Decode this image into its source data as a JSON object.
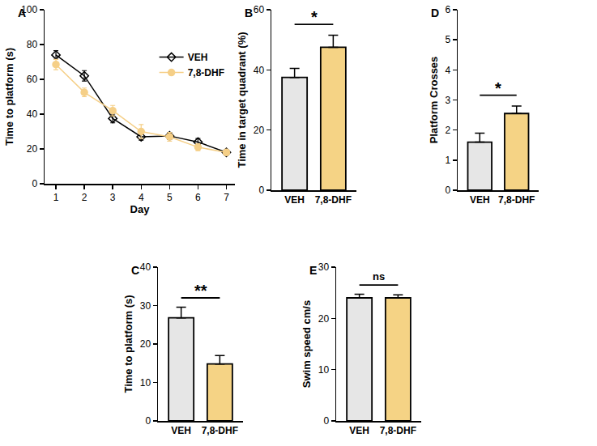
{
  "chart_data": [
    {
      "type": "line",
      "title": "A",
      "x": [
        1,
        2,
        3,
        4,
        5,
        6,
        7
      ],
      "xlabel": "Day",
      "ylabel": "Time to platform (s)",
      "xlim": [
        0.6,
        7.3
      ],
      "xticks": [
        1,
        2,
        3,
        4,
        5,
        6,
        7
      ],
      "ylim": [
        0,
        100
      ],
      "yticks": [
        0,
        20,
        40,
        60,
        80,
        100
      ],
      "legend": "upper right",
      "grid": false,
      "series": [
        {
          "name": "VEH",
          "color": "#000000",
          "marker": "diamond-open",
          "values": [
            74,
            62,
            37.5,
            27,
            27.5,
            24,
            18
          ],
          "errors": [
            2.5,
            3,
            2.5,
            2,
            2,
            2,
            1.5
          ]
        },
        {
          "name": "7,8-DHF",
          "color": "#f5cf87",
          "marker": "circle",
          "values": [
            68.5,
            52.5,
            42,
            30,
            27,
            21,
            18
          ],
          "errors": [
            3,
            2.5,
            3,
            4,
            2.5,
            2,
            1.5
          ]
        }
      ]
    },
    {
      "type": "bar",
      "title": "B",
      "categories": [
        "VEH",
        "7,8-DHF"
      ],
      "values": [
        37.5,
        47.5
      ],
      "errors": [
        3,
        4
      ],
      "colors": [
        "#e6e6e6",
        "#f5d385"
      ],
      "ylabel": "Time in target quadrant (%)",
      "ylim": [
        0,
        60
      ],
      "yticks": [
        0,
        20,
        40,
        60
      ],
      "annotations": [
        "*"
      ],
      "grid": false
    },
    {
      "type": "bar",
      "title": "D",
      "categories": [
        "VEH",
        "7,8-DHF"
      ],
      "values": [
        1.6,
        2.55
      ],
      "errors": [
        0.3,
        0.25
      ],
      "colors": [
        "#e6e6e6",
        "#f5d385"
      ],
      "ylabel": "Platform Crosses",
      "ylim": [
        0,
        6
      ],
      "yticks": [
        0,
        1,
        2,
        3,
        4,
        5,
        6
      ],
      "annotations": [
        "*"
      ],
      "grid": false
    },
    {
      "type": "bar",
      "title": "C",
      "categories": [
        "VEH",
        "7,8-DHF"
      ],
      "values": [
        26.8,
        14.8
      ],
      "errors": [
        2.8,
        2.2
      ],
      "colors": [
        "#e6e6e6",
        "#f5d385"
      ],
      "ylabel": "Time to platform (s)",
      "ylim": [
        0,
        40
      ],
      "yticks": [
        0,
        10,
        20,
        30,
        40
      ],
      "annotations": [
        "**"
      ],
      "grid": false
    },
    {
      "type": "bar",
      "title": "E",
      "categories": [
        "VEH",
        "7,8-DHF"
      ],
      "values": [
        24,
        24
      ],
      "errors": [
        0.7,
        0.6
      ],
      "colors": [
        "#e6e6e6",
        "#f5d385"
      ],
      "ylabel": "Swim speed cm/s",
      "ylim": [
        0,
        30
      ],
      "yticks": [
        0,
        10,
        20,
        30
      ],
      "annotations": [
        "ns"
      ],
      "grid": false
    }
  ]
}
